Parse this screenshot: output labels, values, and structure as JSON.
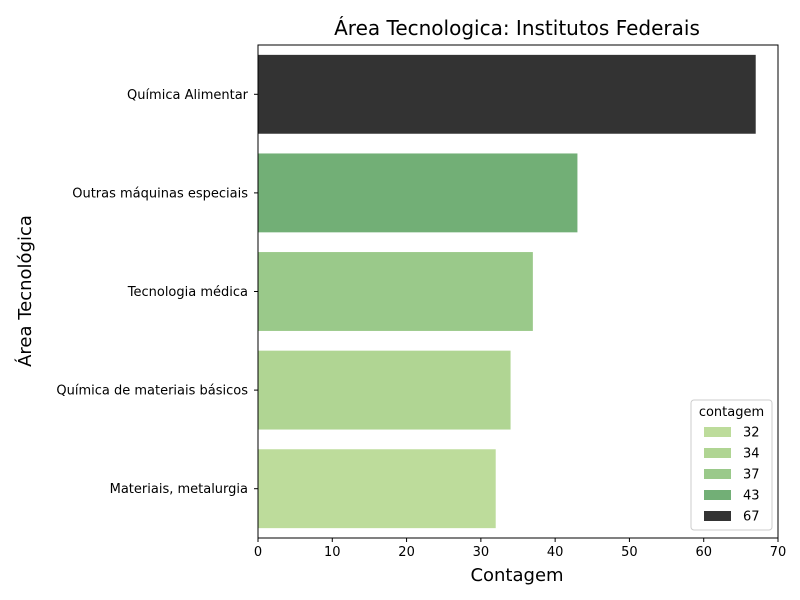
{
  "chart_data": {
    "type": "bar",
    "orientation": "horizontal",
    "title": "Área Tecnologica: Institutos Federais",
    "xlabel": "Contagem",
    "ylabel": "Área Tecnológica",
    "xlim": [
      0,
      70
    ],
    "xticks": [
      0,
      10,
      20,
      30,
      40,
      50,
      60,
      70
    ],
    "grid": false,
    "categories": [
      "Química Alimentar",
      "Outras máquinas especiais",
      "Tecnologia médica",
      "Química de materiais básicos",
      "Materiais, metalurgia"
    ],
    "values": [
      67,
      43,
      37,
      34,
      32
    ],
    "bar_colors": [
      "#333333",
      "#72af76",
      "#9ac98a",
      "#b0d593",
      "#bddc9b"
    ],
    "legend": {
      "title": "contagem",
      "placement": "bottom-right",
      "entries": [
        {
          "label": "32",
          "color": "#bddc9b"
        },
        {
          "label": "34",
          "color": "#b0d593"
        },
        {
          "label": "37",
          "color": "#9ac98a"
        },
        {
          "label": "43",
          "color": "#72af76"
        },
        {
          "label": "67",
          "color": "#333333"
        }
      ]
    }
  }
}
